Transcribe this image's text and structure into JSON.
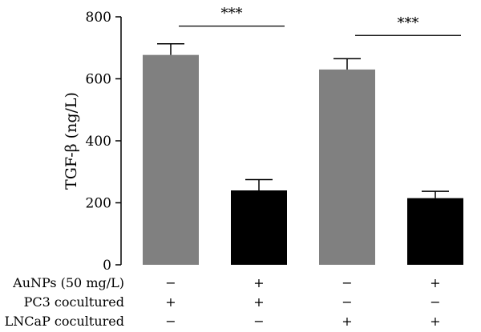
{
  "chart_data": {
    "type": "bar",
    "ylabel": "TGF-β (ng/L)",
    "ylim": [
      0,
      800
    ],
    "yticks": [
      0,
      200,
      400,
      600,
      800
    ],
    "grid": false,
    "bars": [
      {
        "value": 677,
        "error": 36,
        "color": "#808080"
      },
      {
        "value": 240,
        "error": 35,
        "color": "#000000"
      },
      {
        "value": 630,
        "error": 35,
        "color": "#808080"
      },
      {
        "value": 215,
        "error": 22,
        "color": "#000000"
      }
    ],
    "significance": [
      {
        "label": "***",
        "from": 0,
        "to": 1,
        "y": 770
      },
      {
        "label": "***",
        "from": 2,
        "to": 3,
        "y": 740
      }
    ],
    "conditions": [
      {
        "label": "AuNPs (50 mg/L)",
        "values": [
          "−",
          "+",
          "−",
          "+"
        ]
      },
      {
        "label": "PC3 cocultured",
        "values": [
          "+",
          "+",
          "−",
          "−"
        ]
      },
      {
        "label": "LNCaP cocultured",
        "values": [
          "−",
          "−",
          "+",
          "+"
        ]
      }
    ]
  }
}
